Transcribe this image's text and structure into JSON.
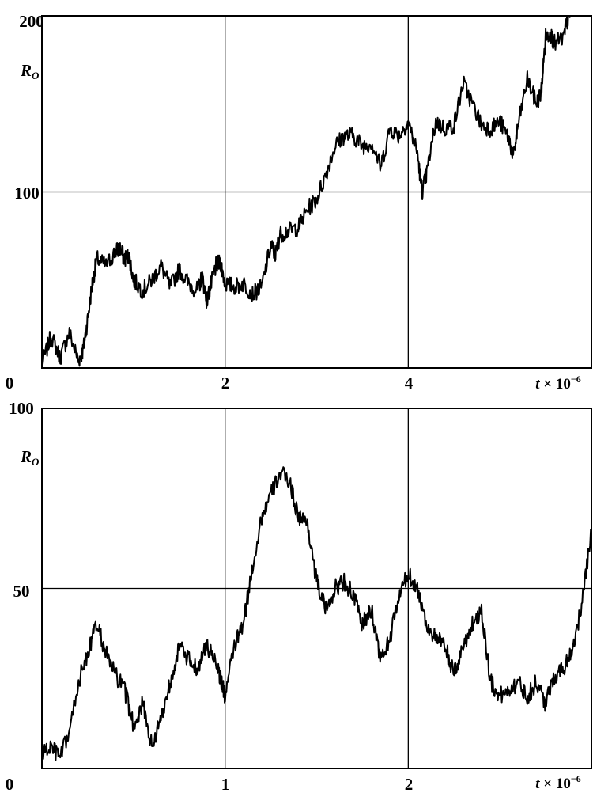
{
  "chart_data": [
    {
      "type": "line",
      "title": "",
      "ylabel": "R_O",
      "xlabel": "t × 10⁻⁶",
      "xlabel_parts": {
        "var": "t",
        "times": "×",
        "base": "10",
        "exp": "−6"
      },
      "ylabel_parts": {
        "main": "R",
        "sub": "O"
      },
      "xlim": [
        0,
        6
      ],
      "ylim": [
        0,
        200
      ],
      "x_ticks": [
        0,
        2,
        4
      ],
      "x_tick_labels": [
        "0",
        "2",
        "4"
      ],
      "y_ticks": [
        100,
        200
      ],
      "y_tick_labels": [
        "100",
        "200"
      ],
      "grid": true,
      "series": [
        {
          "color": "#000000",
          "x": [
            0,
            0.1,
            0.2,
            0.3,
            0.4,
            0.45,
            0.5,
            0.55,
            0.6,
            0.7,
            0.8,
            0.85,
            0.9,
            0.95,
            1.0,
            1.1,
            1.2,
            1.3,
            1.4,
            1.5,
            1.6,
            1.7,
            1.75,
            1.8,
            1.85,
            1.9,
            1.95,
            2.0,
            2.1,
            2.2,
            2.3,
            2.4,
            2.5,
            2.55,
            2.6,
            2.7,
            2.8,
            2.9,
            3.0,
            3.1,
            3.2,
            3.3,
            3.4,
            3.5,
            3.6,
            3.7,
            3.8,
            3.9,
            4.0,
            4.1,
            4.15,
            4.2,
            4.3,
            4.4,
            4.5,
            4.6,
            4.7,
            4.8,
            4.9,
            5.0,
            5.1,
            5.15,
            5.2,
            5.3,
            5.4,
            5.45,
            5.5,
            5.55,
            5.6,
            5.7,
            5.75,
            5.8
          ],
          "y": [
            2,
            18,
            6,
            20,
            4,
            10,
            28,
            48,
            62,
            58,
            66,
            68,
            62,
            64,
            50,
            44,
            50,
            58,
            46,
            56,
            48,
            44,
            52,
            38,
            48,
            58,
            60,
            48,
            46,
            48,
            42,
            46,
            70,
            64,
            76,
            78,
            80,
            90,
            96,
            110,
            126,
            132,
            132,
            126,
            128,
            114,
            136,
            132,
            140,
            122,
            100,
            110,
            140,
            136,
            138,
            162,
            150,
            138,
            136,
            140,
            130,
            120,
            138,
            164,
            150,
            156,
            188,
            190,
            184,
            188,
            200,
            204
          ]
        }
      ]
    },
    {
      "type": "line",
      "title": "",
      "ylabel": "R_O",
      "xlabel": "t × 10⁻⁶",
      "xlabel_parts": {
        "var": "t",
        "times": "×",
        "base": "10",
        "exp": "−6"
      },
      "ylabel_parts": {
        "main": "R",
        "sub": "O"
      },
      "xlim": [
        0,
        3
      ],
      "ylim": [
        0,
        100
      ],
      "x_ticks": [
        0,
        1,
        2
      ],
      "x_tick_labels": [
        "0",
        "1",
        "2"
      ],
      "y_ticks": [
        50,
        100
      ],
      "y_tick_labels": [
        "50",
        "100"
      ],
      "grid": true,
      "series": [
        {
          "color": "#000000",
          "x": [
            0,
            0.05,
            0.1,
            0.15,
            0.2,
            0.25,
            0.3,
            0.35,
            0.4,
            0.45,
            0.5,
            0.55,
            0.6,
            0.65,
            0.7,
            0.75,
            0.8,
            0.85,
            0.9,
            0.95,
            0.98,
            1.0,
            1.05,
            1.1,
            1.15,
            1.2,
            1.25,
            1.3,
            1.35,
            1.4,
            1.45,
            1.5,
            1.55,
            1.6,
            1.65,
            1.7,
            1.75,
            1.8,
            1.85,
            1.9,
            1.95,
            2.0,
            2.05,
            2.1,
            2.15,
            2.2,
            2.25,
            2.3,
            2.35,
            2.4,
            2.45,
            2.5,
            2.55,
            2.6,
            2.65,
            2.7,
            2.75,
            2.8,
            2.85,
            2.9,
            2.95,
            3.0
          ],
          "y": [
            4,
            6,
            3,
            10,
            24,
            32,
            40,
            32,
            26,
            22,
            12,
            18,
            6,
            14,
            24,
            34,
            30,
            28,
            34,
            30,
            24,
            20,
            34,
            40,
            56,
            70,
            76,
            82,
            80,
            70,
            68,
            52,
            44,
            50,
            52,
            48,
            40,
            44,
            30,
            36,
            48,
            54,
            50,
            40,
            36,
            34,
            26,
            34,
            40,
            44,
            24,
            20,
            22,
            24,
            20,
            24,
            18,
            26,
            28,
            34,
            46,
            66
          ]
        }
      ]
    }
  ]
}
